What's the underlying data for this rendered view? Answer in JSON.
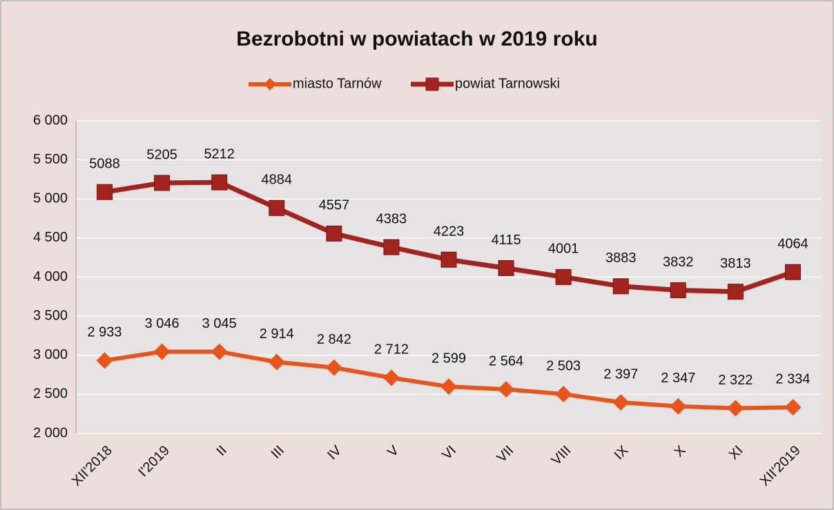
{
  "chart_data": {
    "type": "line",
    "title": "Bezrobotni w powiatach w 2019 roku",
    "categories": [
      "XII'2018",
      "I'2019",
      "II",
      "III",
      "IV",
      "V",
      "VI",
      "VII",
      "VIII",
      "IX",
      "X",
      "XI",
      "XII'2019"
    ],
    "series": [
      {
        "name": "miasto Tarnów",
        "color": "#e8541a",
        "marker": "diamond",
        "values": [
          2933,
          3046,
          3045,
          2914,
          2842,
          2712,
          2599,
          2564,
          2503,
          2397,
          2347,
          2322,
          2334
        ],
        "value_labels": [
          "2 933",
          "3 046",
          "3 045",
          "2 914",
          "2 842",
          "2 712",
          "2 599",
          "2 564",
          "2 503",
          "2 397",
          "2 347",
          "2 322",
          "2 334"
        ]
      },
      {
        "name": "powiat Tarnowski",
        "color": "#a3231e",
        "marker": "square",
        "values": [
          5088,
          5205,
          5212,
          4884,
          4557,
          4383,
          4223,
          4115,
          4001,
          3883,
          3832,
          3813,
          4064
        ]
      }
    ],
    "ylim": [
      2000,
      6000
    ],
    "yticks": [
      {
        "value": 2000,
        "label": "2 000"
      },
      {
        "value": 2500,
        "label": "2 500"
      },
      {
        "value": 3000,
        "label": "3 000"
      },
      {
        "value": 3500,
        "label": "3 500"
      },
      {
        "value": 4000,
        "label": "4 000"
      },
      {
        "value": 4500,
        "label": "4 500"
      },
      {
        "value": 5000,
        "label": "5 000"
      },
      {
        "value": 5500,
        "label": "5 500"
      },
      {
        "value": 6000,
        "label": "6 000"
      }
    ],
    "grid": true,
    "legend": "top"
  }
}
